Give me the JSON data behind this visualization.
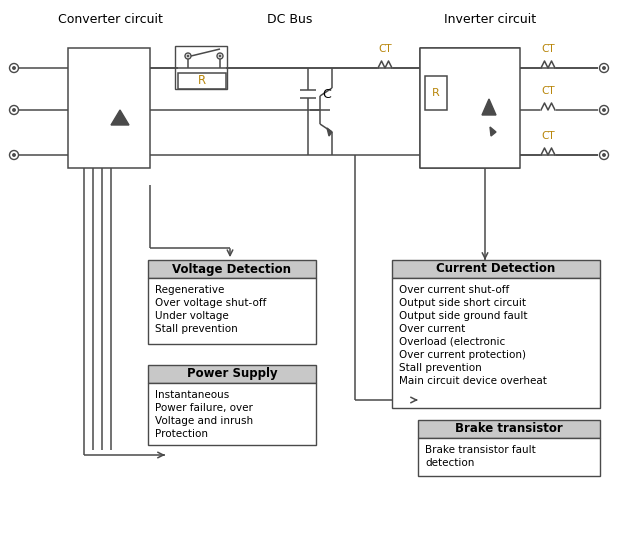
{
  "header_converter": "Converter circuit",
  "header_dcbus": "DC Bus",
  "header_inverter": "Inverter circuit",
  "ct_color": "#b8860b",
  "gray": "#4a4a4a",
  "voltage_detection_title": "Voltage Detection",
  "voltage_detection_items": [
    "Regenerative",
    "Over voltage shut-off",
    "Under voltage",
    "Stall prevention"
  ],
  "current_detection_title": "Current Detection",
  "current_detection_items": [
    "Over current shut-off",
    "Output side short circuit",
    "Output side ground fault",
    "Over current",
    "Overload (electronic",
    "Over current protection)",
    "Stall prevention",
    "Main circuit device overheat"
  ],
  "power_supply_title": "Power Supply",
  "power_supply_items": [
    "Instantaneous",
    "Power failure, over",
    "Voltage and inrush",
    "Protection"
  ],
  "brake_transistor_title": "Brake transistor",
  "brake_transistor_items": [
    "Brake transistor fault",
    "detection"
  ],
  "figw": 6.2,
  "figh": 5.35,
  "dpi": 100
}
